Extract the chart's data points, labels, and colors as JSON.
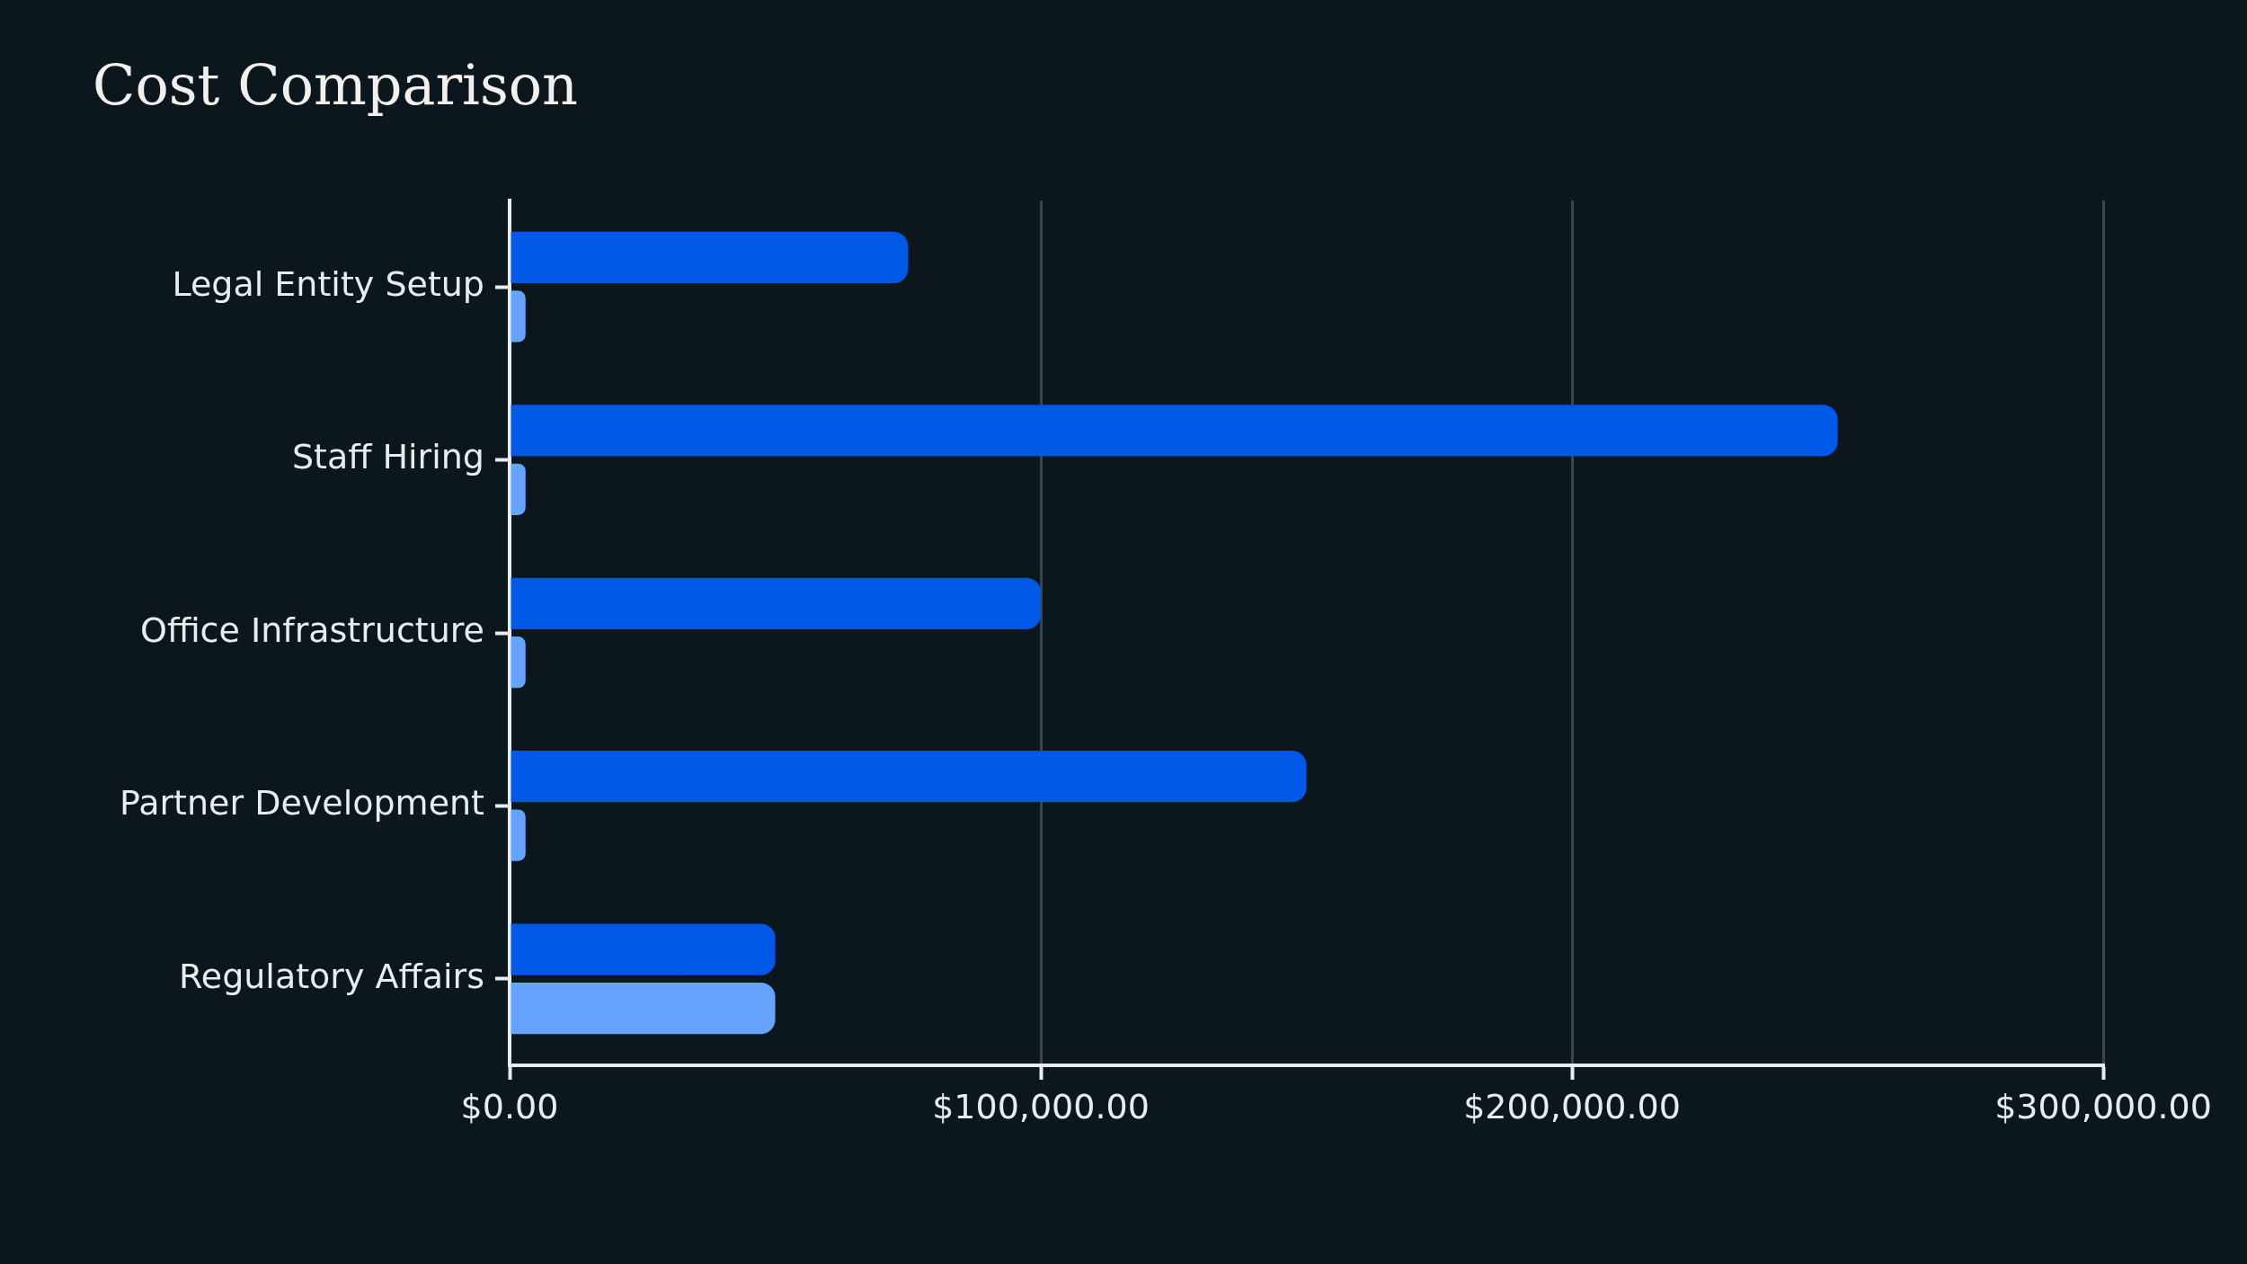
{
  "chart_data": {
    "type": "bar",
    "orientation": "horizontal",
    "title": "Cost Comparison",
    "categories": [
      "Legal Entity Setup",
      "Staff Hiring",
      "Office Infrastructure",
      "Partner Development",
      "Regulatory Affairs"
    ],
    "series": [
      {
        "color": "#0059e6",
        "values": [
          75000,
          250000,
          100000,
          150000,
          50000
        ]
      },
      {
        "color": "#66a3ff",
        "values": [
          3000,
          3000,
          3000,
          3000,
          50000
        ]
      }
    ],
    "xlim": [
      0,
      300000
    ],
    "xticks": [
      {
        "value": 0,
        "label": "$0.00"
      },
      {
        "value": 100000,
        "label": "$100,000.00"
      },
      {
        "value": 200000,
        "label": "$200,000.00"
      },
      {
        "value": 300000,
        "label": "$300,000.00"
      }
    ],
    "grid": "x",
    "legend": false
  }
}
